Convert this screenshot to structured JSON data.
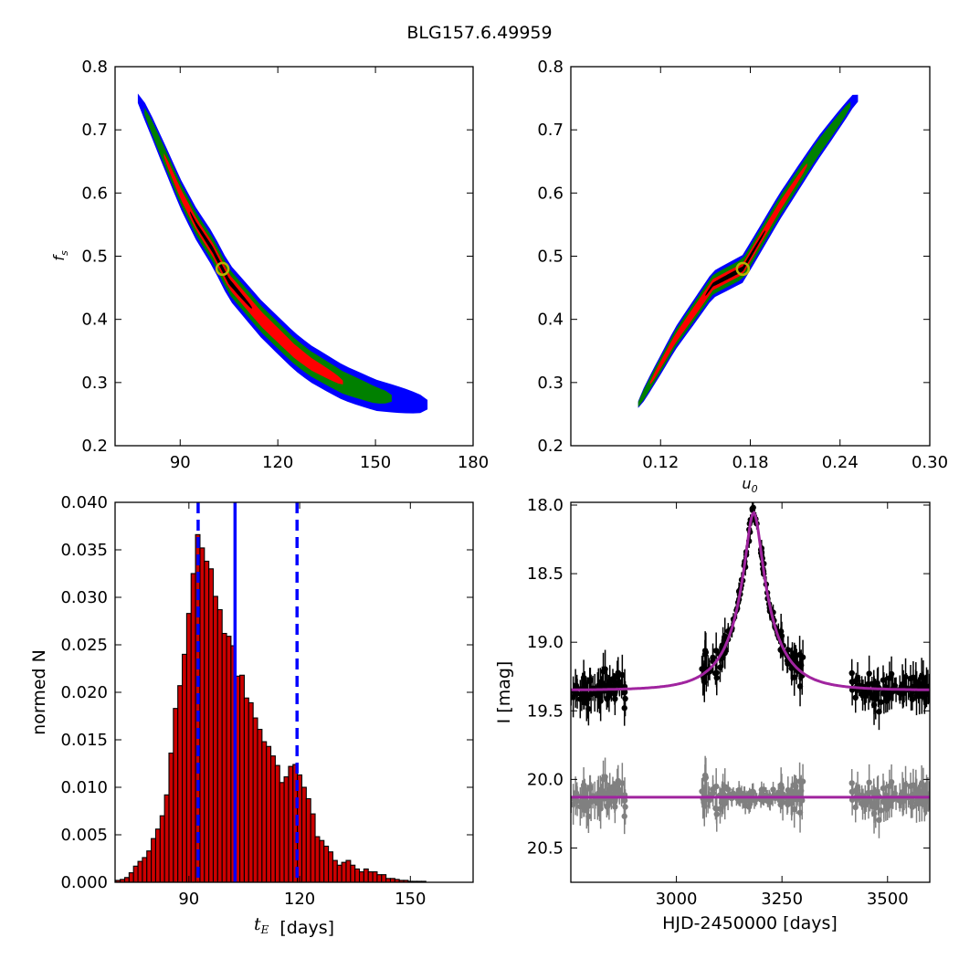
{
  "title": "BLG157.6.49959",
  "chart_data": [
    {
      "type": "heatmap",
      "panel": "tE-fs",
      "xlim": [
        70,
        180
      ],
      "ylim": [
        0.2,
        0.8
      ],
      "xticks": [
        90,
        120,
        150,
        180
      ],
      "yticks": [
        0.2,
        0.3,
        0.4,
        0.5,
        0.6,
        0.7,
        0.8
      ],
      "xticklabels": [
        "90",
        "120",
        "150",
        "180"
      ],
      "yticklabels": [
        "0.2",
        "0.3",
        "0.4",
        "0.5",
        "0.6",
        "0.7",
        "0.8"
      ],
      "xlabel": "",
      "ylabel": "f_s",
      "ridge": [
        [
          77,
          0.75
        ],
        [
          80,
          0.72
        ],
        [
          85,
          0.66
        ],
        [
          90,
          0.6
        ],
        [
          95,
          0.55
        ],
        [
          100,
          0.51
        ],
        [
          105,
          0.46
        ],
        [
          110,
          0.43
        ],
        [
          115,
          0.4
        ],
        [
          120,
          0.375
        ],
        [
          125,
          0.35
        ],
        [
          130,
          0.33
        ],
        [
          135,
          0.315
        ],
        [
          140,
          0.3
        ],
        [
          145,
          0.29
        ],
        [
          150,
          0.28
        ],
        [
          160,
          0.27
        ],
        [
          165,
          0.265
        ]
      ],
      "contours": [
        {
          "level": "3-sigma",
          "color": "#0000ff",
          "halfwidth": 0.03,
          "range": [
            77,
            166
          ]
        },
        {
          "level": "2-sigma",
          "color": "#008000",
          "halfwidth": 0.021,
          "range": [
            79,
            155
          ]
        },
        {
          "level": "1-sigma",
          "color": "#ff0000",
          "halfwidth": 0.012,
          "range": [
            85,
            140
          ]
        },
        {
          "level": "peak",
          "color": "#000000",
          "halfwidth": 0.005,
          "range": [
            93,
            112
          ]
        }
      ],
      "best_fit": {
        "x": 103,
        "y": 0.48
      }
    },
    {
      "type": "heatmap",
      "panel": "u0-fs",
      "xlim": [
        0.06,
        0.3
      ],
      "ylim": [
        0.2,
        0.8
      ],
      "xticks": [
        0.12,
        0.18,
        0.24,
        0.3
      ],
      "yticks": [
        0.2,
        0.3,
        0.4,
        0.5,
        0.6,
        0.7,
        0.8
      ],
      "xticklabels": [
        "0.12",
        "0.18",
        "0.24",
        "0.30"
      ],
      "yticklabels": [
        "0.2",
        "0.3",
        "0.4",
        "0.5",
        "0.6",
        "0.7",
        "0.8"
      ],
      "xlabel": "u_0",
      "ylabel": "",
      "ridge": [
        [
          0.105,
          0.265
        ],
        [
          0.13,
          0.37
        ],
        [
          0.155,
          0.455
        ],
        [
          0.175,
          0.48
        ],
        [
          0.2,
          0.58
        ],
        [
          0.225,
          0.67
        ],
        [
          0.25,
          0.75
        ]
      ],
      "contours": [
        {
          "level": "3-sigma",
          "color": "#0000ff",
          "halfwidth": 0.022,
          "range": [
            0.105,
            0.252
          ]
        },
        {
          "level": "2-sigma",
          "color": "#008000",
          "halfwidth": 0.016,
          "range": [
            0.105,
            0.247
          ]
        },
        {
          "level": "1-sigma",
          "color": "#ff0000",
          "halfwidth": 0.009,
          "range": [
            0.113,
            0.218
          ]
        },
        {
          "level": "peak",
          "color": "#000000",
          "halfwidth": 0.004,
          "range": [
            0.15,
            0.19
          ]
        }
      ],
      "best_fit": {
        "x": 0.175,
        "y": 0.48
      }
    },
    {
      "type": "bar",
      "panel": "tE-histogram",
      "xlim": [
        70,
        167
      ],
      "ylim": [
        0,
        0.04
      ],
      "xticks": [
        90,
        120,
        150
      ],
      "yticks": [
        0.0,
        0.005,
        0.01,
        0.015,
        0.02,
        0.025,
        0.03,
        0.035,
        0.04
      ],
      "xticklabels": [
        "90",
        "120",
        "150"
      ],
      "yticklabels": [
        "0.000",
        "0.005",
        "0.010",
        "0.015",
        "0.020",
        "0.025",
        "0.030",
        "0.035",
        "0.040"
      ],
      "xlabel": "t_E",
      "xlabel_unit": "[days]",
      "ylabel": "normed N",
      "bin_start": 70.2,
      "bin_width": 1.2,
      "values": [
        0.0002,
        0.0003,
        0.0005,
        0.001,
        0.0017,
        0.0022,
        0.0026,
        0.0033,
        0.0046,
        0.0056,
        0.007,
        0.0092,
        0.0136,
        0.0183,
        0.0207,
        0.024,
        0.0283,
        0.0325,
        0.0366,
        0.0352,
        0.0338,
        0.033,
        0.0301,
        0.0287,
        0.0262,
        0.0259,
        0.0249,
        0.0217,
        0.0218,
        0.0194,
        0.0189,
        0.0173,
        0.0161,
        0.0148,
        0.0143,
        0.0133,
        0.0123,
        0.0105,
        0.0111,
        0.0122,
        0.0124,
        0.0113,
        0.01,
        0.0088,
        0.0072,
        0.0048,
        0.0044,
        0.0038,
        0.0032,
        0.0023,
        0.0018,
        0.0021,
        0.0023,
        0.0018,
        0.0014,
        0.0011,
        0.0014,
        0.0011,
        0.0011,
        0.0008,
        0.0008,
        0.0004,
        0.0004,
        0.0003,
        0.0002,
        0.0002,
        0.0001,
        0.0001,
        0.0001,
        0.0001
      ],
      "median": 102.5,
      "interval": [
        92.5,
        119.3
      ],
      "line_color": "#0000ff",
      "bar_color": "#cc0000"
    },
    {
      "type": "scatter",
      "panel": "light-curve",
      "xlim": [
        2750,
        3600
      ],
      "ylim": [
        20.75,
        17.98
      ],
      "xticks": [
        3000,
        3250,
        3500
      ],
      "yticks": [
        18.0,
        18.5,
        19.0,
        19.5,
        20.0,
        20.5
      ],
      "xticklabels": [
        "3000",
        "3250",
        "3500"
      ],
      "yticklabels": [
        "18.0",
        "18.5",
        "19.0",
        "19.5",
        "20.0",
        "20.5"
      ],
      "xlabel": "HJD-2450000 [days]",
      "ylabel": "I [mag]",
      "model": {
        "t0": 3183,
        "tE": 103,
        "u0": 0.175,
        "fs": 0.48,
        "baseline": 19.35,
        "color": "#a0249f"
      },
      "residual_offset": 20.13,
      "data_color": "#000000",
      "residual_color": "#808080",
      "seasons": [
        [
          2750,
          2880
        ],
        [
          3060,
          3300
        ],
        [
          3415,
          3600
        ]
      ]
    }
  ]
}
